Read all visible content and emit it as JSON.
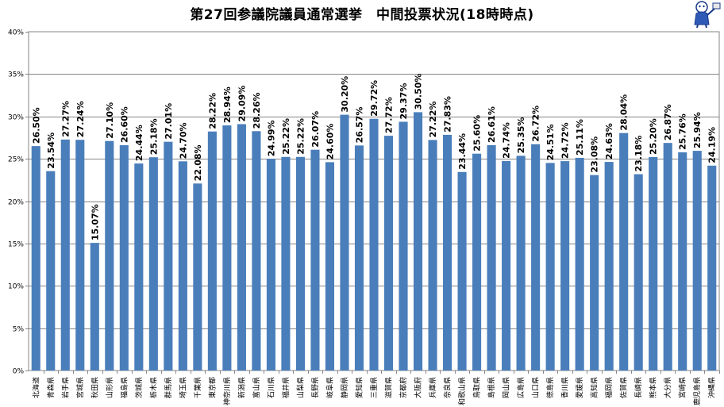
{
  "chart_data": {
    "type": "bar",
    "title": "第27回参議院議員通常選挙　中間投票状況(18時時点)",
    "ylim": [
      0,
      40
    ],
    "yticks": [
      "0%",
      "5%",
      "10%",
      "15%",
      "20%",
      "25%",
      "30%",
      "35%",
      "40%"
    ],
    "grid": true,
    "bar_color": "#4a7ebb",
    "categories": [
      "北海道",
      "青森県",
      "岩手県",
      "宮城県",
      "秋田県",
      "山形県",
      "福島県",
      "茨城県",
      "栃木県",
      "群馬県",
      "埼玉県",
      "千葉県",
      "東京都",
      "神奈川県",
      "新潟県",
      "富山県",
      "石川県",
      "福井県",
      "山梨県",
      "長野県",
      "岐阜県",
      "静岡県",
      "愛知県",
      "三重県",
      "滋賀県",
      "京都府",
      "大阪府",
      "兵庫県",
      "奈良県",
      "和歌山県",
      "鳥取県",
      "島根県",
      "岡山県",
      "広島県",
      "山口県",
      "徳島県",
      "香川県",
      "愛媛県",
      "高知県",
      "福岡県",
      "佐賀県",
      "長崎県",
      "熊本県",
      "大分県",
      "宮崎県",
      "鹿児島県",
      "沖縄県"
    ],
    "values": [
      26.5,
      23.54,
      27.27,
      27.24,
      15.07,
      27.1,
      26.6,
      24.44,
      25.18,
      27.01,
      24.7,
      22.08,
      28.22,
      28.94,
      29.09,
      28.26,
      24.99,
      25.22,
      25.22,
      26.07,
      24.6,
      30.2,
      26.57,
      29.72,
      27.72,
      29.37,
      30.5,
      27.22,
      27.83,
      23.44,
      25.6,
      26.61,
      24.74,
      25.35,
      26.72,
      24.51,
      24.72,
      25.11,
      23.08,
      24.63,
      28.04,
      23.18,
      25.2,
      26.87,
      25.76,
      25.94,
      24.19
    ],
    "data_labels": [
      "26.50%",
      "23.54%",
      "27.27%",
      "27.24%",
      "15.07%",
      "27.10%",
      "26.60%",
      "24.44%",
      "25.18%",
      "27.01%",
      "24.70%",
      "22.08%",
      "28.22%",
      "28.94%",
      "29.09%",
      "28.26%",
      "24.99%",
      "25.22%",
      "25.22%",
      "26.07%",
      "24.60%",
      "30.20%",
      "26.57%",
      "29.72%",
      "27.72%",
      "29.37%",
      "30.50%",
      "27.22%",
      "27.83%",
      "23.44%",
      "25.60%",
      "26.61%",
      "24.74%",
      "25.35%",
      "26.72%",
      "24.51%",
      "24.72%",
      "25.11%",
      "23.08%",
      "24.63%",
      "28.04%",
      "23.18%",
      "25.20%",
      "26.87%",
      "25.76%",
      "25.94%",
      "24.19%"
    ]
  }
}
